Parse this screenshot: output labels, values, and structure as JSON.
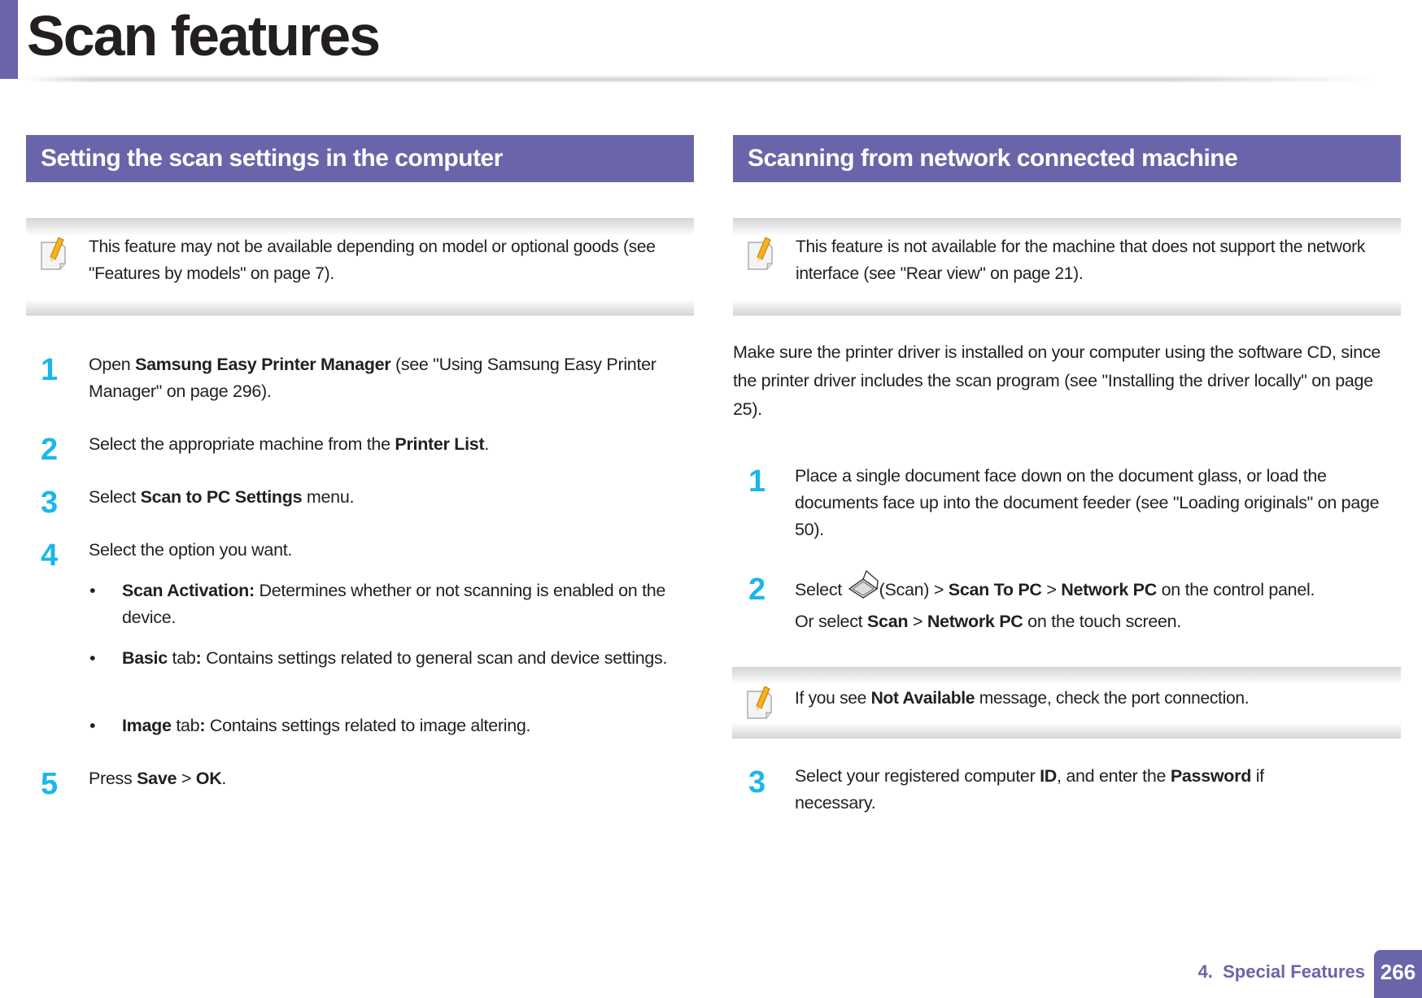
{
  "page_title": "Scan features",
  "left": {
    "heading": "Setting the scan settings in the computer",
    "note": "This feature may not be available depending on model or optional goods (see \"Features by models\" on page 7).",
    "steps": [
      {
        "num": "1",
        "p1": "Open ",
        "b1": "Samsung Easy Printer Manager",
        "p2": " (see \"Using Samsung Easy Printer Manager\" on page 296)."
      },
      {
        "num": "2",
        "p1": "Select the appropriate machine from the ",
        "b1": "Printer List",
        "p2": "."
      },
      {
        "num": "3",
        "p1": "Select ",
        "b1": "Scan to PC Settings",
        "p2": " menu."
      },
      {
        "num": "4",
        "p1": "Select the option you want."
      },
      {
        "num": "5",
        "p1": "Press ",
        "b1": "Save",
        "p2": " > ",
        "b2": "OK",
        "p3": "."
      }
    ],
    "bullets": [
      {
        "b1": "Scan Activation:",
        "p1": " Determines whether or not scanning is enabled on the device."
      },
      {
        "b1": "Basic",
        "p1": " tab",
        "b2": ":",
        "p2": " Contains settings related to general scan and device settings."
      },
      {
        "b1": "Image",
        "p1": " tab",
        "b2": ":",
        "p2": " Contains settings related to image altering."
      }
    ],
    "bullet_char": "•"
  },
  "right": {
    "heading": "Scanning from network connected machine",
    "note": "This feature is not available for the machine that does not support the network interface (see \"Rear view\" on page 21).",
    "intro": "Make sure the printer driver is installed on your computer using the software CD, since the printer driver includes the scan program (see \"Installing the driver locally\" on page 25).",
    "steps": [
      {
        "num": "1",
        "p1": "Place a single document face down on the document glass, or load the documents face up into the document feeder (see \"Loading originals\" on page 50)."
      },
      {
        "num": "2",
        "p1": "Select ",
        "icon_label": "(Scan) > ",
        "b1": "Scan To PC",
        "p2": " > ",
        "b2": "Network PC",
        "p3": " on the control panel.",
        "alt_p1": "Or select ",
        "alt_b1": "Scan",
        "alt_p2": " > ",
        "alt_b2": "Network PC",
        "alt_p3": " on the touch screen."
      },
      {
        "num": "3",
        "p1": "Select your registered computer ",
        "b1": "ID",
        "p2": ", and enter the ",
        "b2": "Password",
        "p3": " if necessary."
      }
    ],
    "note2": {
      "p1": "If you see ",
      "b1": "Not Available",
      "p2": " message, check the port connection."
    }
  },
  "footer": {
    "chapter": "4.  Special Features",
    "page": "266"
  },
  "colors": {
    "accent": "#6a64ab",
    "step_number": "#1ab7ea"
  }
}
